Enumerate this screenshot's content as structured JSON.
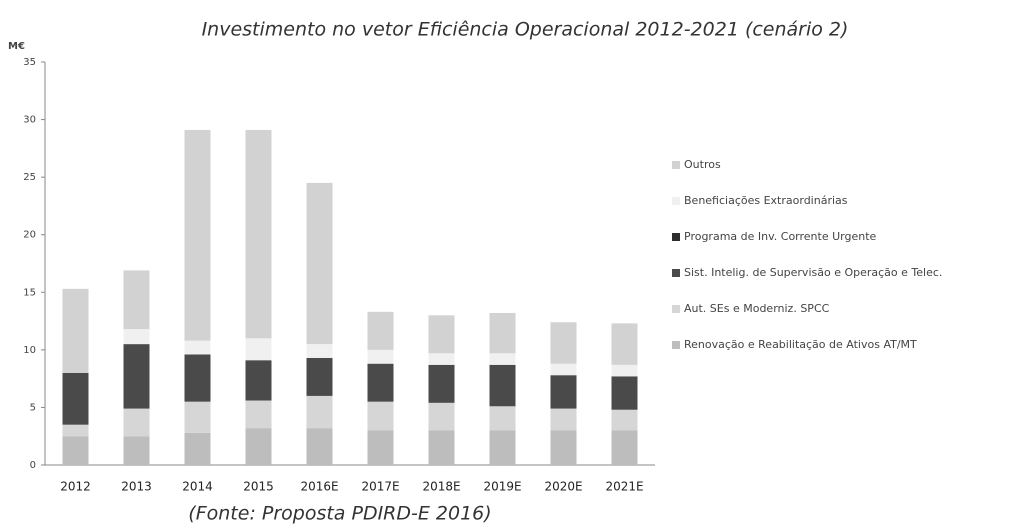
{
  "chart_data": {
    "type": "stacked_bar",
    "title": "Investimento no vetor Eficiência Operacional 2012-2021 (cenário 2)",
    "y_label": "M€",
    "source": "(Fonte: Proposta PDIRD-E 2016)",
    "categories": [
      "2012",
      "2013",
      "2014",
      "2015",
      "2016E",
      "2017E",
      "2018E",
      "2019E",
      "2020E",
      "2021E"
    ],
    "series": [
      {
        "name": "Renovação e Reabilitação de Ativos AT/MT",
        "color": "#bdbdbd",
        "values": [
          2.5,
          2.5,
          2.8,
          3.2,
          3.2,
          3.0,
          3.0,
          3.0,
          3.0,
          3.0
        ]
      },
      {
        "name": "Aut. SEs e Moderniz. SPCC",
        "color": "#d6d6d6",
        "values": [
          1.0,
          2.4,
          2.7,
          2.4,
          2.8,
          2.5,
          2.4,
          2.1,
          1.9,
          1.8
        ]
      },
      {
        "name": "Sist. Intelig. de Supervisão e Operação e Telec.",
        "color": "#4a4a4a",
        "values": [
          4.5,
          5.6,
          4.1,
          3.5,
          3.3,
          3.3,
          3.3,
          3.6,
          2.9,
          2.9
        ]
      },
      {
        "name": "Programa de Inv. Corrente Urgente",
        "color": "#2e2e2e",
        "values": [
          0,
          0,
          0,
          0,
          0,
          0,
          0,
          0,
          0,
          0
        ]
      },
      {
        "name": "Beneficiações Extraordinárias",
        "color": "#f0f0f0",
        "values": [
          0,
          1.3,
          1.2,
          1.9,
          1.2,
          1.2,
          1.0,
          1.0,
          1.0,
          1.0
        ]
      },
      {
        "name": "Outros",
        "color": "#d2d2d2",
        "values": [
          7.3,
          5.1,
          18.3,
          18.1,
          14.0,
          3.3,
          3.3,
          3.5,
          3.6,
          3.6
        ]
      }
    ],
    "ylim": [
      0,
      35
    ],
    "yticks": [
      0,
      5,
      10,
      15,
      20,
      25,
      30,
      35
    ],
    "legend": "right"
  }
}
